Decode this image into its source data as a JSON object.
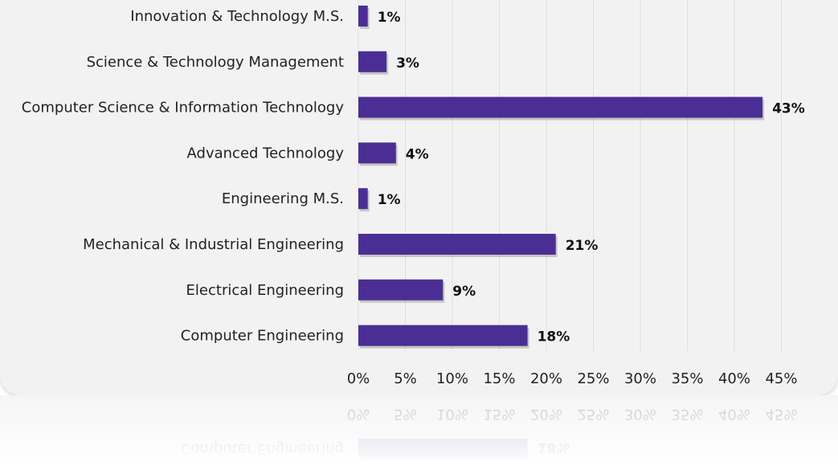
{
  "chart_data": {
    "type": "bar",
    "orientation": "horizontal",
    "categories": [
      "Innovation & Technology M.S.",
      "Science & Technology Management",
      "Computer Science & Information Technology",
      "Advanced Technology",
      "Engineering M.S.",
      "Mechanical & Industrial Engineering",
      "Electrical Engineering",
      "Computer Engineering"
    ],
    "values": [
      1,
      3,
      43,
      4,
      1,
      21,
      9,
      18
    ],
    "value_labels": [
      "1%",
      "3%",
      "43%",
      "4%",
      "1%",
      "21%",
      "9%",
      "18%"
    ],
    "x_ticks": [
      "0%",
      "5%",
      "10%",
      "15%",
      "20%",
      "25%",
      "30%",
      "35%",
      "40%",
      "45%"
    ],
    "xlim": [
      0,
      45
    ],
    "unit": "%",
    "bar_color": "#4b2e93",
    "grid": true,
    "legend": "none"
  }
}
